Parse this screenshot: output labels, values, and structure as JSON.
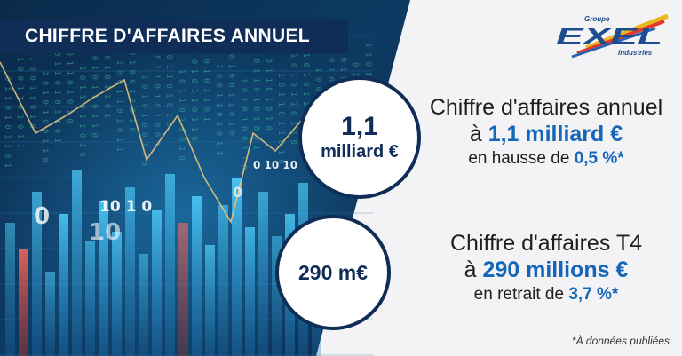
{
  "banner": {
    "title": "CHIFFRE D'AFFAIRES ANNUEL"
  },
  "logo": {
    "group": "Groupe",
    "name": "EXEL",
    "sub": "industries"
  },
  "annual": {
    "badge_value": "1,1",
    "badge_unit": "milliard €",
    "headline": "Chiffre d'affaires annuel",
    "line2_prefix": "à",
    "line2_value": "1,1 milliard €",
    "line3_prefix": "en hausse de",
    "line3_value": "0,5 %*"
  },
  "quarter": {
    "badge_value": "290 m€",
    "headline": "Chiffre d'affaires T4",
    "line2_prefix": "à",
    "line2_value": "290 millions €",
    "line3_prefix": "en retrait de",
    "line3_value": "3,7 %*"
  },
  "footnote": "*À données publiées",
  "colors": {
    "navy": "#0f2d57",
    "accent_blue": "#1466b8",
    "background": "#f3f3f5"
  }
}
